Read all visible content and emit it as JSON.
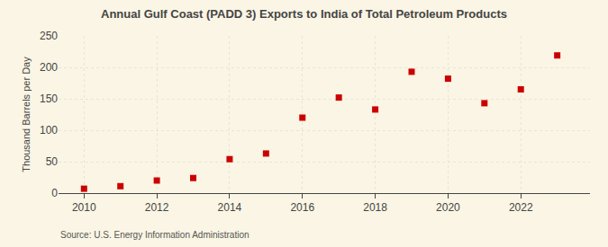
{
  "chart_data": {
    "type": "scatter",
    "title": "Annual Gulf Coast (PADD 3) Exports to India of Total Petroleum Products",
    "y_label": "Thousand Barrels per Day",
    "annotations": [
      "Source: U.S. Energy Information Administration"
    ],
    "x": [
      2010,
      2011,
      2012,
      2013,
      2014,
      2015,
      2016,
      2017,
      2018,
      2019,
      2020,
      2021,
      2022,
      2023
    ],
    "values": [
      7,
      11,
      20,
      24,
      54,
      63,
      120,
      152,
      133,
      193,
      182,
      143,
      165,
      219
    ],
    "color": "#cc0000",
    "marker": "square",
    "xlim": [
      2009.3,
      2023.9
    ],
    "xticks": [
      2010,
      2012,
      2014,
      2016,
      2018,
      2020,
      2022
    ],
    "ylim": [
      0,
      250
    ],
    "yticks": [
      0,
      50,
      100,
      150,
      200,
      250
    ],
    "grid": true
  }
}
